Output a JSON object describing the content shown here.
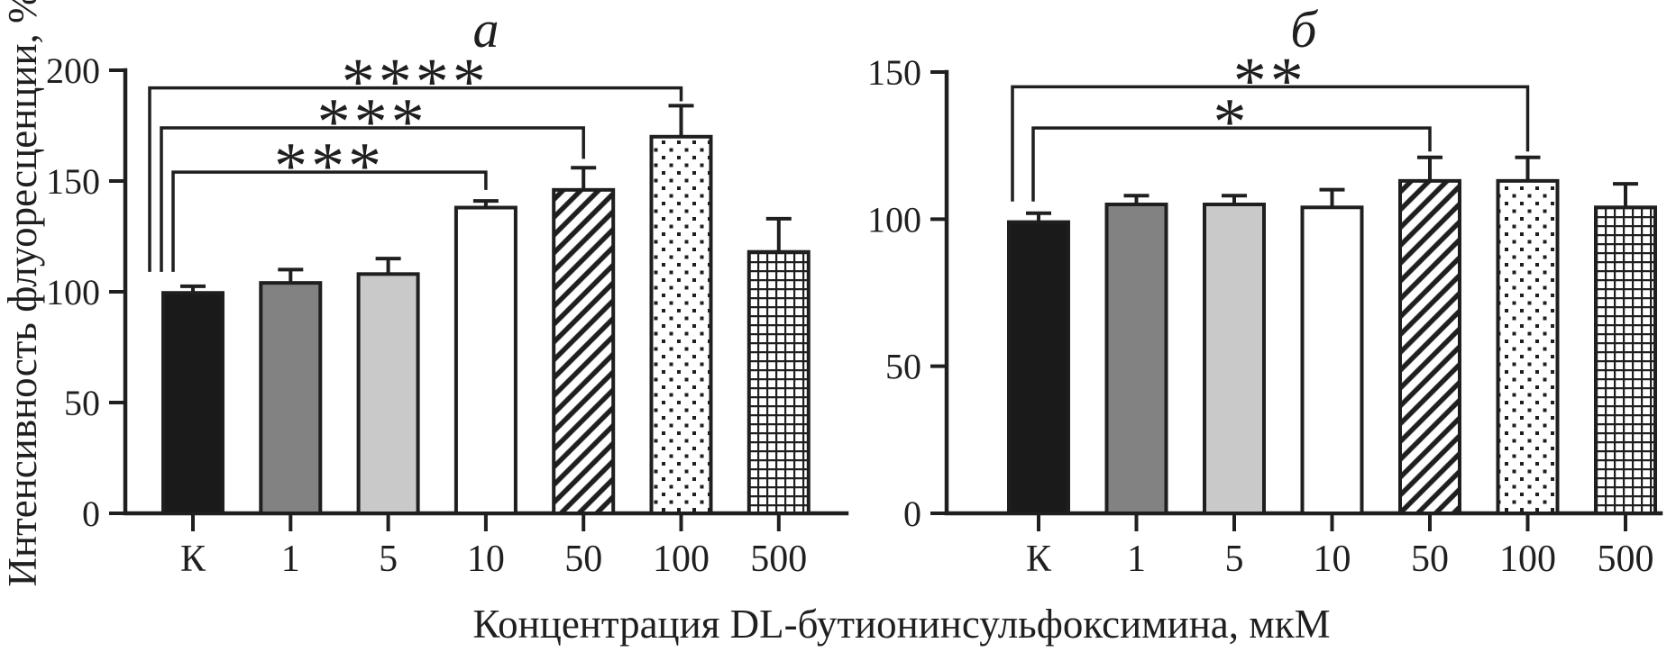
{
  "figure": {
    "y_axis_label": "Интенсивность флуоресценции, %",
    "x_axis_label": "Концентрация DL-бутионинсульфоксимина, мкМ",
    "style": {
      "ink": "#1f1f1f",
      "background": "#ffffff",
      "bar_black": "#1a1a1a",
      "bar_dark_gray": "#828282",
      "bar_light_gray": "#c9c9c9",
      "bar_white": "#ffffff"
    }
  },
  "chart_data": [
    {
      "type": "bar",
      "panel_label": "a",
      "xlabel": "Концентрация DL-бутионинсульфоксимина, мкМ",
      "ylabel": "Интенсивность флуоресценции, %",
      "categories": [
        "К",
        "1",
        "5",
        "10",
        "50",
        "100",
        "500"
      ],
      "values": [
        99.5,
        104,
        108,
        138,
        146,
        170,
        118
      ],
      "errors": [
        3,
        6,
        7,
        3,
        10,
        14,
        15
      ],
      "ylim": [
        0,
        200
      ],
      "yticks": [
        0,
        50,
        100,
        150,
        200
      ],
      "grid": false,
      "legend": "none",
      "bar_styles": [
        "solid-black",
        "dark-gray",
        "light-gray",
        "white",
        "diagonal-hatch",
        "polka-dots",
        "cross-grid"
      ],
      "significance": [
        {
          "from": "К",
          "to": "10",
          "label": "***",
          "line_y": 154,
          "from_x_offset": -22,
          "from_end_y": 109,
          "to_end_y": 146
        },
        {
          "from": "К",
          "to": "50",
          "label": "***",
          "line_y": 174,
          "from_x_offset": -35,
          "from_end_y": 109,
          "to_end_y": 160
        },
        {
          "from": "К",
          "to": "100",
          "label": "****",
          "line_y": 192,
          "from_x_offset": -48,
          "from_end_y": 109,
          "to_end_y": 186
        }
      ]
    },
    {
      "type": "bar",
      "panel_label": "б",
      "xlabel": "Концентрация DL-бутионинсульфоксимина, мкМ",
      "ylabel": "Интенсивность флуоресценции, %",
      "categories": [
        "К",
        "1",
        "5",
        "10",
        "50",
        "100",
        "500"
      ],
      "values": [
        99,
        105,
        105,
        104,
        113,
        113,
        104
      ],
      "errors": [
        3,
        3,
        3,
        6,
        8,
        8,
        8
      ],
      "ylim": [
        0,
        150
      ],
      "yticks": [
        0,
        50,
        100,
        150
      ],
      "grid": false,
      "legend": "none",
      "bar_styles": [
        "solid-black",
        "dark-gray",
        "light-gray",
        "white",
        "diagonal-hatch",
        "polka-dots",
        "cross-grid"
      ],
      "significance": [
        {
          "from": "К",
          "to": "50",
          "label": "*",
          "line_y": 131,
          "from_x_offset": -6,
          "from_end_y": 106,
          "to_end_y": 123
        },
        {
          "from": "К",
          "to": "100",
          "label": "**",
          "line_y": 145,
          "from_x_offset": -29,
          "from_end_y": 106,
          "to_end_y": 123
        }
      ]
    }
  ]
}
